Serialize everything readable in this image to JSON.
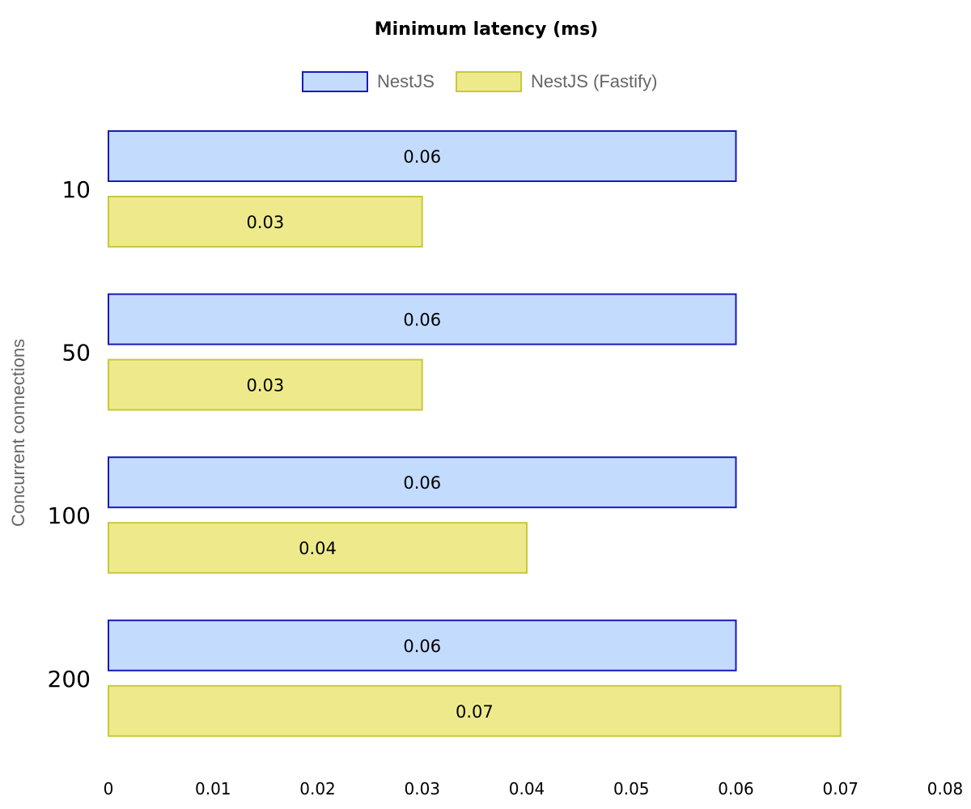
{
  "chart_data": {
    "type": "bar",
    "orientation": "horizontal",
    "title": "Minimum latency (ms)",
    "xlabel": "",
    "ylabel": "Concurrent connections",
    "categories": [
      "10",
      "50",
      "100",
      "200"
    ],
    "series": [
      {
        "name": "NestJS",
        "values": [
          0.06,
          0.06,
          0.06,
          0.06
        ],
        "fill": "#c3dbfd",
        "stroke": "#1a1ab8"
      },
      {
        "name": "NestJS (Fastify)",
        "values": [
          0.03,
          0.03,
          0.04,
          0.07
        ],
        "fill": "#eeea8c",
        "stroke": "#c8c83c"
      }
    ],
    "xlim": [
      0,
      0.08
    ],
    "xticks": [
      "0",
      "0.01",
      "0.02",
      "0.03",
      "0.04",
      "0.05",
      "0.06",
      "0.07",
      "0.08"
    ],
    "grid": false,
    "legend_position": "top"
  }
}
